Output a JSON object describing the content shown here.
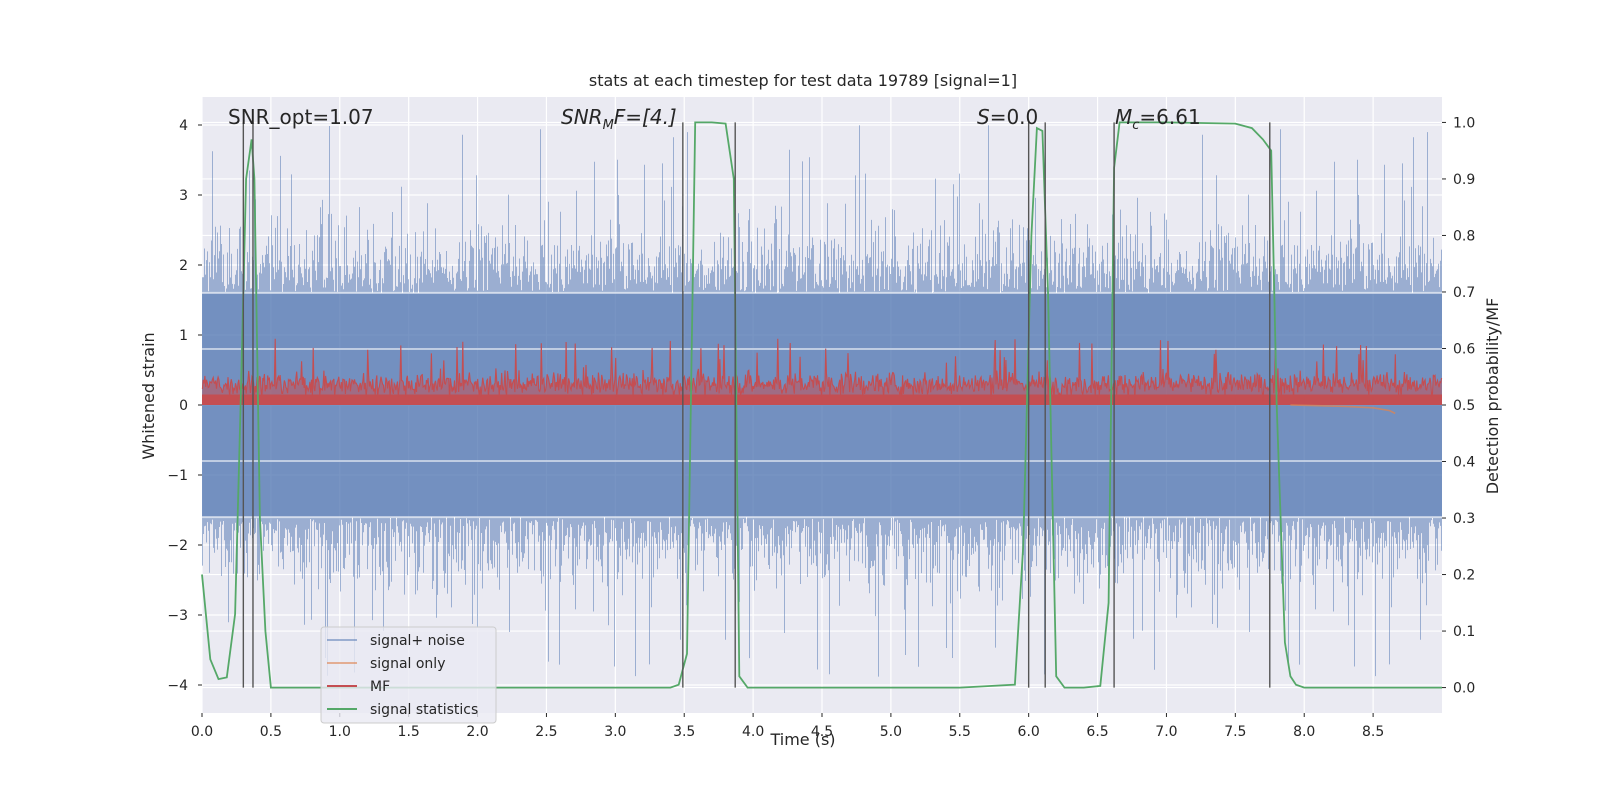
{
  "chart_data": {
    "type": "line",
    "title": "stats at each timestep for test data 19789 [signal=1]",
    "xlabel": "Time (s)",
    "ylabel": "Whitened strain",
    "y2label": "Detection probability/MF",
    "xlim": [
      0.0,
      9.0
    ],
    "ylim": [
      -4.4,
      4.4
    ],
    "y2lim": [
      -0.045,
      1.045
    ],
    "xticks": [
      0.0,
      0.5,
      1.0,
      1.5,
      2.0,
      2.5,
      3.0,
      3.5,
      4.0,
      4.5,
      5.0,
      5.5,
      6.0,
      6.5,
      7.0,
      7.5,
      8.0,
      8.5
    ],
    "xtick_labels": [
      "0.0",
      "0.5",
      "1.0",
      "1.5",
      "2.0",
      "2.5",
      "3.0",
      "3.5",
      "4.0",
      "4.5",
      "5.0",
      "5.5",
      "6.0",
      "6.5",
      "7.0",
      "7.5",
      "8.0",
      "8.5"
    ],
    "yticks": [
      -4,
      -3,
      -2,
      -1,
      0,
      1,
      2,
      3,
      4
    ],
    "ytick_labels": [
      "−4",
      "−3",
      "−2",
      "−1",
      "0",
      "1",
      "2",
      "3",
      "4"
    ],
    "y2ticks": [
      0.0,
      0.1,
      0.2,
      0.3,
      0.4,
      0.5,
      0.6,
      0.7,
      0.8,
      0.9,
      1.0
    ],
    "y2tick_labels": [
      "0.0",
      "0.1",
      "0.2",
      "0.3",
      "0.4",
      "0.5",
      "0.6",
      "0.7",
      "0.8",
      "0.9",
      "1.0"
    ],
    "grid": true,
    "legend_position": "lower-left",
    "annotations": {
      "snr_opt": "SNR_opt=1.07",
      "snr_mf_main": "SNR",
      "snr_mf_sub": "M",
      "snr_mf_rest": "F=[4.]",
      "s_main": "S",
      "s_rest": "=0.0",
      "mc_main": "M",
      "mc_sub": "c",
      "mc_rest": "=6.61"
    },
    "series": [
      {
        "name": "signal+ noise",
        "color": "#4c72b0",
        "note_kind": "noise-envelope",
        "typical_range": [
          -1.6,
          1.6
        ],
        "peak_range": [
          -3.9,
          4.0
        ]
      },
      {
        "name": "signal only",
        "color": "#dd8452",
        "x": [
          7.9,
          8.1,
          8.3,
          8.5,
          8.62,
          8.66
        ],
        "y": [
          0.0,
          -0.01,
          -0.02,
          -0.04,
          -0.08,
          -0.12
        ]
      },
      {
        "name": "MF",
        "color": "#c44e52",
        "note_kind": "noise-band",
        "typical_range": [
          0.0,
          0.55
        ],
        "peak_range": [
          0.0,
          1.0
        ]
      },
      {
        "name": "signal statistics",
        "color": "#55a868",
        "axis": "right",
        "x": [
          0.0,
          0.06,
          0.12,
          0.18,
          0.24,
          0.28,
          0.32,
          0.36,
          0.38,
          0.42,
          0.46,
          0.5,
          0.55,
          1.0,
          2.0,
          3.0,
          3.4,
          3.46,
          3.52,
          3.58,
          3.7,
          3.8,
          3.86,
          3.9,
          3.96,
          4.0,
          4.5,
          5.0,
          5.5,
          5.9,
          5.96,
          6.02,
          6.06,
          6.1,
          6.14,
          6.2,
          6.26,
          6.32,
          6.4,
          6.52,
          6.58,
          6.62,
          6.66,
          6.7,
          6.8,
          7.0,
          7.5,
          7.62,
          7.7,
          7.76,
          7.8,
          7.86,
          7.9,
          7.94,
          8.0,
          8.5,
          9.0
        ],
        "y": [
          0.2,
          0.05,
          0.015,
          0.018,
          0.13,
          0.5,
          0.9,
          0.97,
          0.9,
          0.3,
          0.1,
          0.0,
          0.0,
          0.0,
          0.0,
          0.0,
          0.0,
          0.005,
          0.06,
          1.0,
          1.0,
          0.998,
          0.9,
          0.02,
          0.0,
          0.0,
          0.0,
          0.0,
          0.0,
          0.005,
          0.25,
          0.8,
          0.99,
          0.985,
          0.7,
          0.02,
          0.0,
          0.0,
          0.0,
          0.003,
          0.15,
          0.92,
          1.0,
          1.0,
          1.0,
          1.0,
          0.998,
          0.99,
          0.97,
          0.95,
          0.5,
          0.08,
          0.02,
          0.005,
          0.0,
          0.0,
          0.0
        ]
      }
    ],
    "vertical_markers": [
      0.3,
      0.37,
      3.49,
      3.87,
      6.0,
      6.12,
      6.62,
      7.75
    ]
  }
}
